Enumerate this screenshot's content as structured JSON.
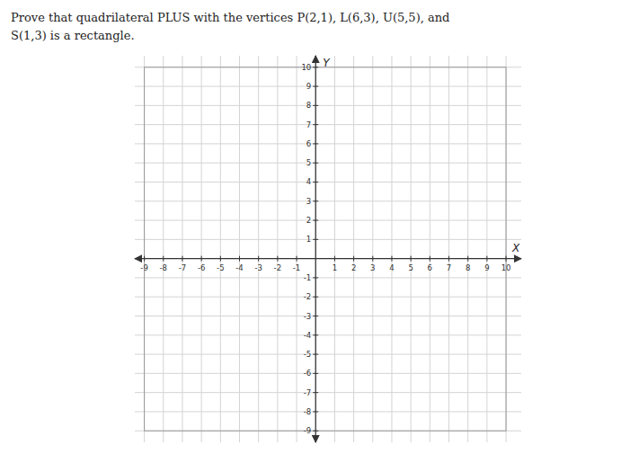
{
  "chart_data": {
    "type": "coordinate_plane",
    "title": "Prove that quadrilateral PLUS with the vertices P(2,1), L(6,3), U(5,5), and",
    "subtitle": "S(1,3) is a rectangle.",
    "x_label": "X",
    "y_label": "Y",
    "xlim": [
      -9.5,
      10.8
    ],
    "ylim": [
      -9.6,
      10.6
    ],
    "xticks": [
      -9,
      -8,
      -7,
      -6,
      -5,
      -4,
      -3,
      -2,
      -1,
      1,
      2,
      3,
      4,
      5,
      6,
      7,
      8,
      9,
      10
    ],
    "yticks": [
      -9,
      -8,
      -7,
      -6,
      -5,
      -4,
      -3,
      -2,
      -1,
      1,
      2,
      3,
      4,
      5,
      6,
      7,
      8,
      9,
      10
    ],
    "grid": true
  }
}
